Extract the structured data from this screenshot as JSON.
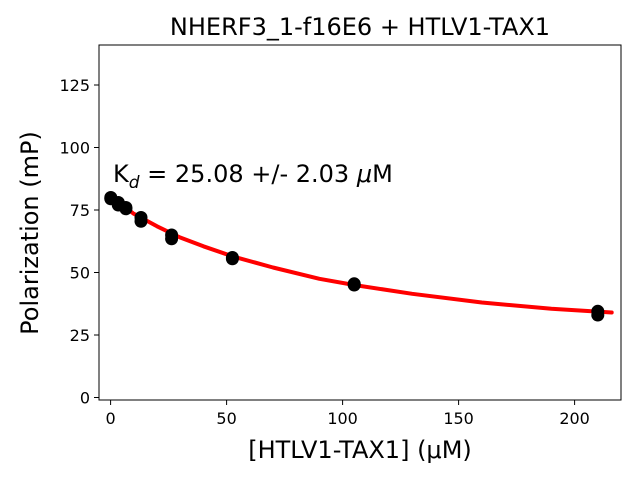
{
  "chart_data": {
    "type": "scatter",
    "title": "NHERF3_1-f16E6 + HTLV1-TAX1",
    "xlabel": "[HTLV1-TAX1] (μM)",
    "ylabel": "Polarization (mP)",
    "xlim": [
      -5,
      220
    ],
    "ylim": [
      -1,
      141
    ],
    "xticks": [
      0,
      50,
      100,
      150,
      200
    ],
    "yticks": [
      0,
      25,
      50,
      75,
      100,
      125
    ],
    "grid": false,
    "annotation": {
      "kd_symbol": "K",
      "kd_subscript": "d",
      "kd_text": " = 25.08 +/- 2.03 ",
      "kd_mu": "μ",
      "kd_unit": "M"
    },
    "series": [
      {
        "kind": "points",
        "color": "#000000",
        "x": [
          0.1,
          0.1,
          3.3,
          3.3,
          6.6,
          6.6,
          13.1,
          13.1,
          26.3,
          26.3,
          52.5,
          52.5,
          105,
          105,
          210,
          210
        ],
        "y": [
          80,
          79.5,
          78,
          77,
          76,
          75.5,
          72,
          70.5,
          65,
          63.5,
          56,
          55.5,
          45,
          45.5,
          34.5,
          33
        ]
      },
      {
        "kind": "fit",
        "color": "#ff0000",
        "x": [
          0,
          5,
          10,
          20,
          30,
          40,
          52.5,
          70,
          90,
          105,
          130,
          160,
          190,
          216
        ],
        "y": [
          80.5,
          77,
          73.5,
          68.5,
          64,
          60.5,
          56.5,
          52,
          47.5,
          45,
          41.5,
          38,
          35.5,
          34
        ]
      }
    ]
  }
}
